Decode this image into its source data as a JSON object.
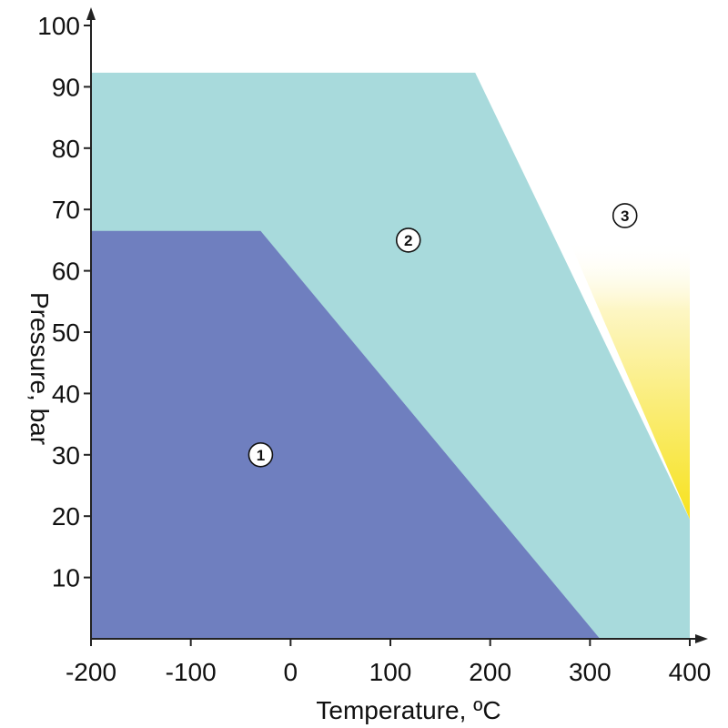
{
  "chart_data": {
    "type": "area",
    "title": "",
    "xlabel": "Temperature, ºC",
    "ylabel": "Pressure, bar",
    "xlim": [
      -200,
      400
    ],
    "ylim": [
      0,
      100
    ],
    "x_ticks": [
      -200,
      -100,
      0,
      100,
      200,
      300,
      400
    ],
    "y_ticks": [
      10,
      20,
      30,
      40,
      50,
      60,
      70,
      80,
      90,
      100
    ],
    "grid": false,
    "legend": "none",
    "regions": [
      {
        "label": "1",
        "color": "#6f7fbf",
        "label_at": {
          "x": -30,
          "y": 30
        },
        "points": [
          {
            "x": -200,
            "y": 0
          },
          {
            "x": -200,
            "y": 66.5
          },
          {
            "x": -30,
            "y": 66.5
          },
          {
            "x": 310,
            "y": 0
          }
        ]
      },
      {
        "label": "2",
        "color": "#a8dadc",
        "label_at": {
          "x": 118,
          "y": 65
        },
        "points": [
          {
            "x": -200,
            "y": 0
          },
          {
            "x": -200,
            "y": 92.3
          },
          {
            "x": 185,
            "y": 92.3
          },
          {
            "x": 400,
            "y": 19.5
          },
          {
            "x": 400,
            "y": 0
          }
        ]
      },
      {
        "label": "3",
        "color": "#f7e21d",
        "label_at": {
          "x": 335,
          "y": 69
        },
        "points": [
          {
            "x": 279,
            "y": 65
          },
          {
            "x": 400,
            "y": 65
          },
          {
            "x": 400,
            "y": 19.5
          }
        ]
      }
    ]
  }
}
